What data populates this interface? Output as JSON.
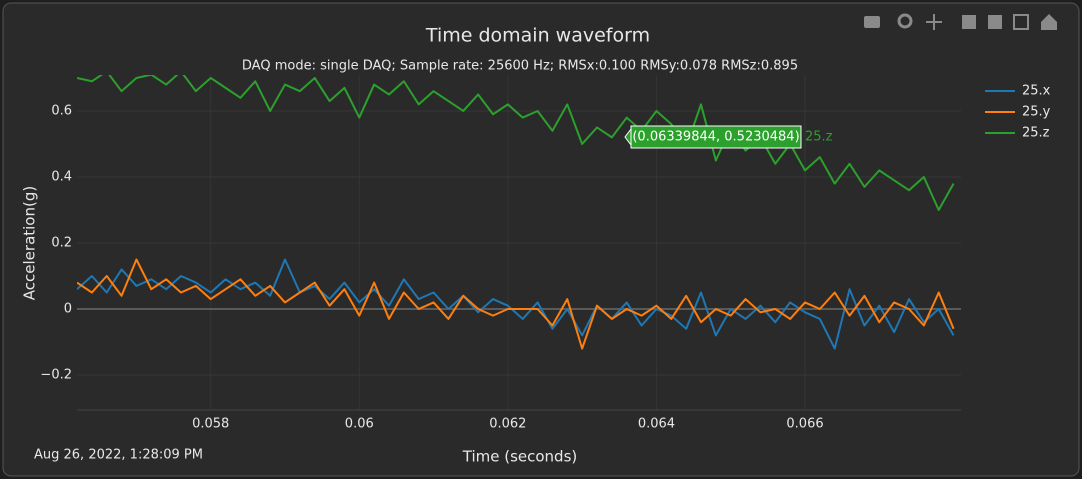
{
  "chart_data": {
    "type": "line",
    "title": "Time domain waveform",
    "subtitle": "DAQ mode: single DAQ; Sample rate: 25600 Hz; RMSx:0.100 RMSy:0.078 RMSz:0.895",
    "x_label": "Time (seconds)",
    "y_label": "Acceleration(g)",
    "timestamp": "Aug 26, 2022, 1:28:09 PM",
    "hover": {
      "text": "(0.06339844, 0.5230484)",
      "series": "25.z"
    },
    "xlim": [
      0.0562,
      0.0681
    ],
    "ylim": [
      -0.306,
      0.709
    ],
    "xticks": [
      0.058,
      0.06,
      0.062,
      0.064,
      0.066
    ],
    "yticks": [
      {
        "value": -0.2,
        "label": "−0.2"
      },
      0,
      0.2,
      0.4,
      0.6
    ],
    "grid": true,
    "x": [
      0.0562,
      0.0564,
      0.0566,
      0.0568,
      0.057,
      0.0572,
      0.0574,
      0.0576,
      0.0578,
      0.058,
      0.0582,
      0.0584,
      0.0586,
      0.0588,
      0.059,
      0.0592,
      0.0594,
      0.0596,
      0.0598,
      0.06,
      0.0602,
      0.0604,
      0.0606,
      0.0608,
      0.061,
      0.0612,
      0.0614,
      0.0616,
      0.0618,
      0.062,
      0.0622,
      0.0624,
      0.0626,
      0.0628,
      0.063,
      0.0632,
      0.0634,
      0.0636,
      0.0638,
      0.064,
      0.0642,
      0.0644,
      0.0646,
      0.0648,
      0.065,
      0.0652,
      0.0654,
      0.0656,
      0.0658,
      0.066,
      0.0662,
      0.0664,
      0.0666,
      0.0668,
      0.067,
      0.0672,
      0.0674,
      0.0676,
      0.0678,
      0.068
    ],
    "series": [
      {
        "name": "25.x",
        "color": "#1f77b4",
        "values": [
          0.06,
          0.1,
          0.05,
          0.12,
          0.07,
          0.09,
          0.06,
          0.1,
          0.08,
          0.05,
          0.09,
          0.06,
          0.08,
          0.04,
          0.15,
          0.05,
          0.07,
          0.03,
          0.08,
          0.02,
          0.06,
          0.01,
          0.09,
          0.03,
          0.05,
          0.0,
          0.04,
          -0.01,
          0.03,
          0.01,
          -0.03,
          0.02,
          -0.06,
          0.0,
          -0.08,
          0.01,
          -0.03,
          0.02,
          -0.05,
          0.0,
          -0.02,
          -0.06,
          0.05,
          -0.08,
          0.0,
          -0.03,
          0.01,
          -0.04,
          0.02,
          -0.01,
          -0.03,
          -0.12,
          0.06,
          -0.05,
          0.01,
          -0.07,
          0.03,
          -0.04,
          0.0,
          -0.08
        ]
      },
      {
        "name": "25.y",
        "color": "#ff7f0e",
        "values": [
          0.08,
          0.05,
          0.1,
          0.04,
          0.15,
          0.06,
          0.09,
          0.05,
          0.07,
          0.03,
          0.06,
          0.09,
          0.04,
          0.07,
          0.02,
          0.05,
          0.08,
          0.01,
          0.06,
          -0.02,
          0.08,
          -0.03,
          0.05,
          0.0,
          0.02,
          -0.03,
          0.04,
          0.0,
          -0.02,
          0.0,
          0.0,
          0.0,
          -0.05,
          0.03,
          -0.12,
          0.01,
          -0.03,
          0.0,
          -0.02,
          0.01,
          -0.03,
          0.04,
          -0.04,
          0.0,
          -0.02,
          0.03,
          -0.01,
          0.0,
          -0.03,
          0.02,
          0.0,
          0.05,
          -0.02,
          0.04,
          -0.04,
          0.02,
          0.0,
          -0.05,
          0.05,
          -0.06
        ]
      },
      {
        "name": "25.z",
        "color": "#2ca02c",
        "values": [
          0.7,
          0.69,
          0.72,
          0.66,
          0.7,
          0.71,
          0.68,
          0.72,
          0.66,
          0.7,
          0.67,
          0.64,
          0.69,
          0.6,
          0.68,
          0.66,
          0.7,
          0.63,
          0.67,
          0.58,
          0.68,
          0.65,
          0.69,
          0.62,
          0.66,
          0.63,
          0.6,
          0.65,
          0.59,
          0.62,
          0.58,
          0.6,
          0.54,
          0.62,
          0.5,
          0.55,
          0.52,
          0.58,
          0.54,
          0.6,
          0.56,
          0.49,
          0.62,
          0.45,
          0.55,
          0.48,
          0.52,
          0.44,
          0.5,
          0.42,
          0.46,
          0.38,
          0.44,
          0.37,
          0.42,
          0.39,
          0.36,
          0.4,
          0.3,
          0.38
        ]
      }
    ]
  }
}
